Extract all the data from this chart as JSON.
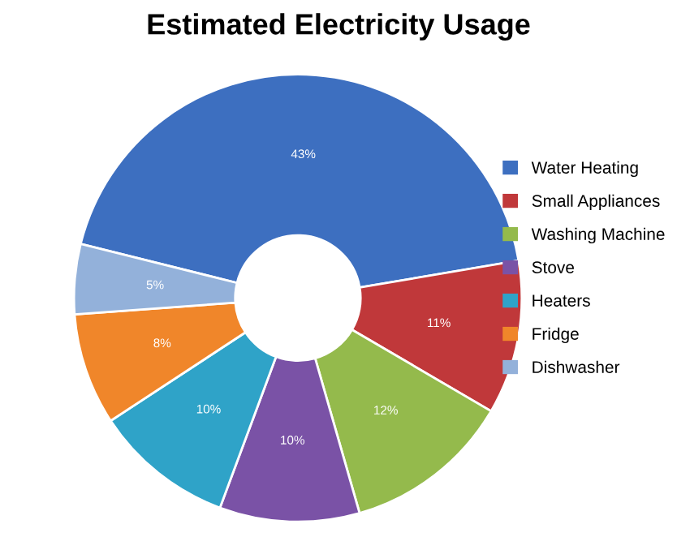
{
  "chart_data": {
    "type": "donut",
    "title": "Estimated Electricity Usage",
    "categories": [
      "Water Heating",
      "Small Appliances",
      "Washing Machine",
      "Stove",
      "Heaters",
      "Fridge",
      "Dishwasher"
    ],
    "values": [
      43,
      11,
      12,
      10,
      10,
      8,
      5
    ],
    "colors": [
      "#3d6fc0",
      "#c0383a",
      "#94ba4c",
      "#7a52a6",
      "#2fa3c8",
      "#f0862a",
      "#93b1da"
    ],
    "value_labels": [
      "43%",
      "11%",
      "12%",
      "10%",
      "10%",
      "8%",
      "5%"
    ],
    "legend": "right"
  }
}
